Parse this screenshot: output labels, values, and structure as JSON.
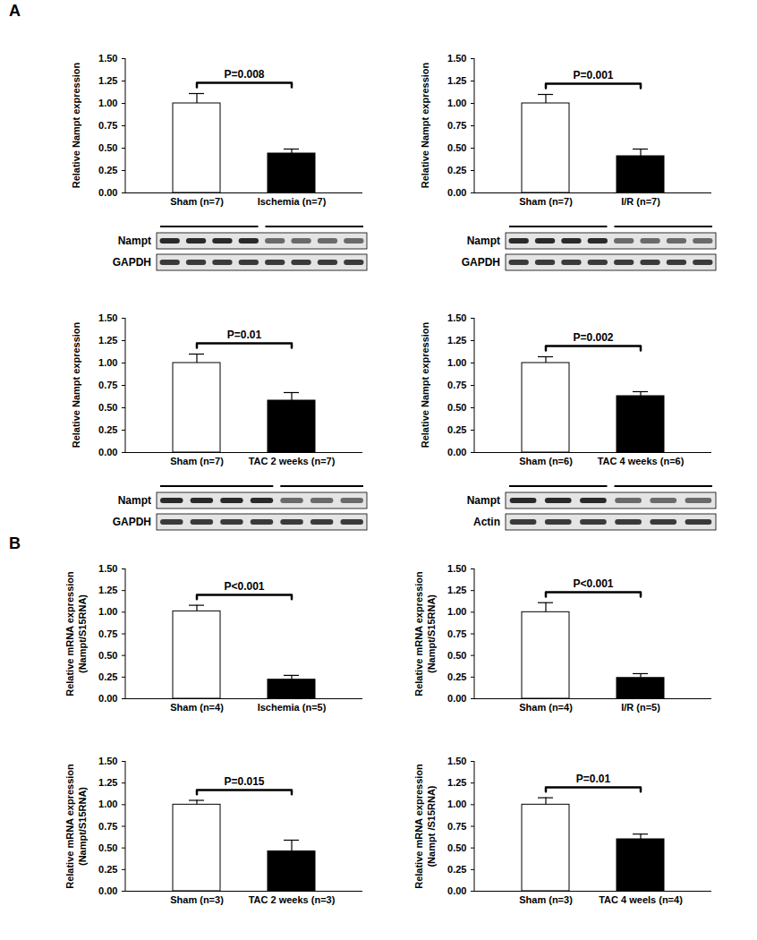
{
  "chart_data": [
    {
      "type": "bar",
      "panel": "A",
      "ylabel": "Relative Nampt expression",
      "categories": [
        "Sham (n=7)",
        "Ischemia (n=7)"
      ],
      "values": [
        1.0,
        0.44
      ],
      "errors": [
        0.11,
        0.05
      ],
      "colors": [
        "#ffffff",
        "#000000"
      ],
      "annotation": "P=0.008",
      "ylim": [
        0,
        1.5
      ],
      "yticks": [
        {
          "value": 0,
          "label": "0.00"
        },
        {
          "value": 0.25,
          "label": "0.25"
        },
        {
          "value": 0.5,
          "label": "0.50"
        },
        {
          "value": 0.75,
          "label": "0.75"
        },
        {
          "value": 1,
          "label": "1.00"
        },
        {
          "value": 1.25,
          "label": "1.25"
        },
        {
          "value": 1.5,
          "label": "1.50"
        }
      ],
      "blot": {
        "rows": [
          "Nampt",
          "GAPDH"
        ],
        "lanes": [
          4,
          4
        ]
      }
    },
    {
      "type": "bar",
      "panel": "A",
      "ylabel": "Relative Nampt expression",
      "categories": [
        "Sham (n=7)",
        "I/R (n=7)"
      ],
      "values": [
        1.0,
        0.41
      ],
      "errors": [
        0.1,
        0.08
      ],
      "colors": [
        "#ffffff",
        "#000000"
      ],
      "annotation": "P=0.001",
      "ylim": [
        0,
        1.5
      ],
      "yticks": [
        {
          "value": 0,
          "label": "0.00"
        },
        {
          "value": 0.25,
          "label": "0.25"
        },
        {
          "value": 0.5,
          "label": "0.50"
        },
        {
          "value": 0.75,
          "label": "0.75"
        },
        {
          "value": 1,
          "label": "1.00"
        },
        {
          "value": 1.25,
          "label": "1.25"
        },
        {
          "value": 1.5,
          "label": "1.50"
        }
      ],
      "blot": {
        "rows": [
          "Nampt",
          "GAPDH"
        ],
        "lanes": [
          4,
          4
        ]
      }
    },
    {
      "type": "bar",
      "panel": "A",
      "ylabel": "Relative Nampt expression",
      "categories": [
        "Sham (n=7)",
        "TAC 2 weeks (n=7)"
      ],
      "values": [
        1.0,
        0.58
      ],
      "errors": [
        0.1,
        0.09
      ],
      "colors": [
        "#ffffff",
        "#000000"
      ],
      "annotation": "P=0.01",
      "ylim": [
        0,
        1.5
      ],
      "yticks": [
        {
          "value": 0,
          "label": "0.00"
        },
        {
          "value": 0.25,
          "label": "0.25"
        },
        {
          "value": 0.5,
          "label": "0.50"
        },
        {
          "value": 0.75,
          "label": "0.75"
        },
        {
          "value": 1,
          "label": "1.00"
        },
        {
          "value": 1.25,
          "label": "1.25"
        },
        {
          "value": 1.5,
          "label": "1.50"
        }
      ],
      "blot": {
        "rows": [
          "Nampt",
          "GAPDH"
        ],
        "lanes": [
          4,
          3
        ]
      }
    },
    {
      "type": "bar",
      "panel": "A",
      "ylabel": "Relative Nampt expression",
      "categories": [
        "Sham (n=6)",
        "TAC 4 weeks (n=6)"
      ],
      "values": [
        1.0,
        0.63
      ],
      "errors": [
        0.07,
        0.05
      ],
      "colors": [
        "#ffffff",
        "#000000"
      ],
      "annotation": "P=0.002",
      "ylim": [
        0,
        1.5
      ],
      "yticks": [
        {
          "value": 0,
          "label": "0.00"
        },
        {
          "value": 0.25,
          "label": "0.25"
        },
        {
          "value": 0.5,
          "label": "0.50"
        },
        {
          "value": 0.75,
          "label": "0.75"
        },
        {
          "value": 1,
          "label": "1.00"
        },
        {
          "value": 1.25,
          "label": "1.25"
        },
        {
          "value": 1.5,
          "label": "1.50"
        }
      ],
      "blot": {
        "rows": [
          "Nampt",
          "Actin"
        ],
        "lanes": [
          3,
          3
        ]
      }
    },
    {
      "type": "bar",
      "panel": "B",
      "ylabel": "Relative mRNA expression\n(Nampt/S15RNA)",
      "categories": [
        "Sham (n=4)",
        "Ischemia (n=5)"
      ],
      "values": [
        1.01,
        0.22
      ],
      "errors": [
        0.07,
        0.05
      ],
      "colors": [
        "#ffffff",
        "#000000"
      ],
      "annotation": "P<0.001",
      "ylim": [
        0,
        1.5
      ],
      "yticks": [
        {
          "value": 0,
          "label": "0.00"
        },
        {
          "value": 0.25,
          "label": "0.25"
        },
        {
          "value": 0.5,
          "label": "0.50"
        },
        {
          "value": 0.75,
          "label": "0.75"
        },
        {
          "value": 1,
          "label": "1.00"
        },
        {
          "value": 1.25,
          "label": "1.25"
        },
        {
          "value": 1.5,
          "label": "1.50"
        }
      ]
    },
    {
      "type": "bar",
      "panel": "B",
      "ylabel": "Relative mRNA expression\n(Nampt/S15RNA)",
      "categories": [
        "Sham (n=4)",
        "I/R (n=5)"
      ],
      "values": [
        1.0,
        0.24
      ],
      "errors": [
        0.11,
        0.05
      ],
      "colors": [
        "#ffffff",
        "#000000"
      ],
      "annotation": "P<0.001",
      "ylim": [
        0,
        1.5
      ],
      "yticks": [
        {
          "value": 0,
          "label": "0.00"
        },
        {
          "value": 0.25,
          "label": "0.25"
        },
        {
          "value": 0.5,
          "label": "0.50"
        },
        {
          "value": 0.75,
          "label": "0.75"
        },
        {
          "value": 1,
          "label": "1.00"
        },
        {
          "value": 1.25,
          "label": "1.25"
        },
        {
          "value": 1.5,
          "label": "1.50"
        }
      ]
    },
    {
      "type": "bar",
      "panel": "B",
      "ylabel": "Relative mRNA expression\n(Nampt/S15RNA)",
      "categories": [
        "Sham (n=3)",
        "TAC 2 weeks (n=3)"
      ],
      "values": [
        1.0,
        0.46
      ],
      "errors": [
        0.05,
        0.13
      ],
      "colors": [
        "#ffffff",
        "#000000"
      ],
      "annotation": "P=0.015",
      "ylim": [
        0,
        1.5
      ],
      "yticks": [
        {
          "value": 0,
          "label": "0.00"
        },
        {
          "value": 0.25,
          "label": "0.25"
        },
        {
          "value": 0.5,
          "label": "0.50"
        },
        {
          "value": 0.75,
          "label": "0.75"
        },
        {
          "value": 1,
          "label": "1.00"
        },
        {
          "value": 1.25,
          "label": "1.25"
        },
        {
          "value": 1.5,
          "label": "1.50"
        }
      ]
    },
    {
      "type": "bar",
      "panel": "B",
      "ylabel": "Relative mRNA expression\n(Nampt /S15RNA)",
      "categories": [
        "Sham (n=3)",
        "TAC 4 weels (n=4)"
      ],
      "values": [
        1.0,
        0.6
      ],
      "errors": [
        0.08,
        0.06
      ],
      "colors": [
        "#ffffff",
        "#000000"
      ],
      "annotation": "P=0.01",
      "ylim": [
        0,
        1.5
      ],
      "yticks": [
        {
          "value": 0,
          "label": "0.00"
        },
        {
          "value": 0.25,
          "label": "0.25"
        },
        {
          "value": 0.5,
          "label": "0.50"
        },
        {
          "value": 0.75,
          "label": "0.75"
        },
        {
          "value": 1,
          "label": "1.00"
        },
        {
          "value": 1.25,
          "label": "1.25"
        },
        {
          "value": 1.5,
          "label": "1.50"
        }
      ]
    }
  ]
}
